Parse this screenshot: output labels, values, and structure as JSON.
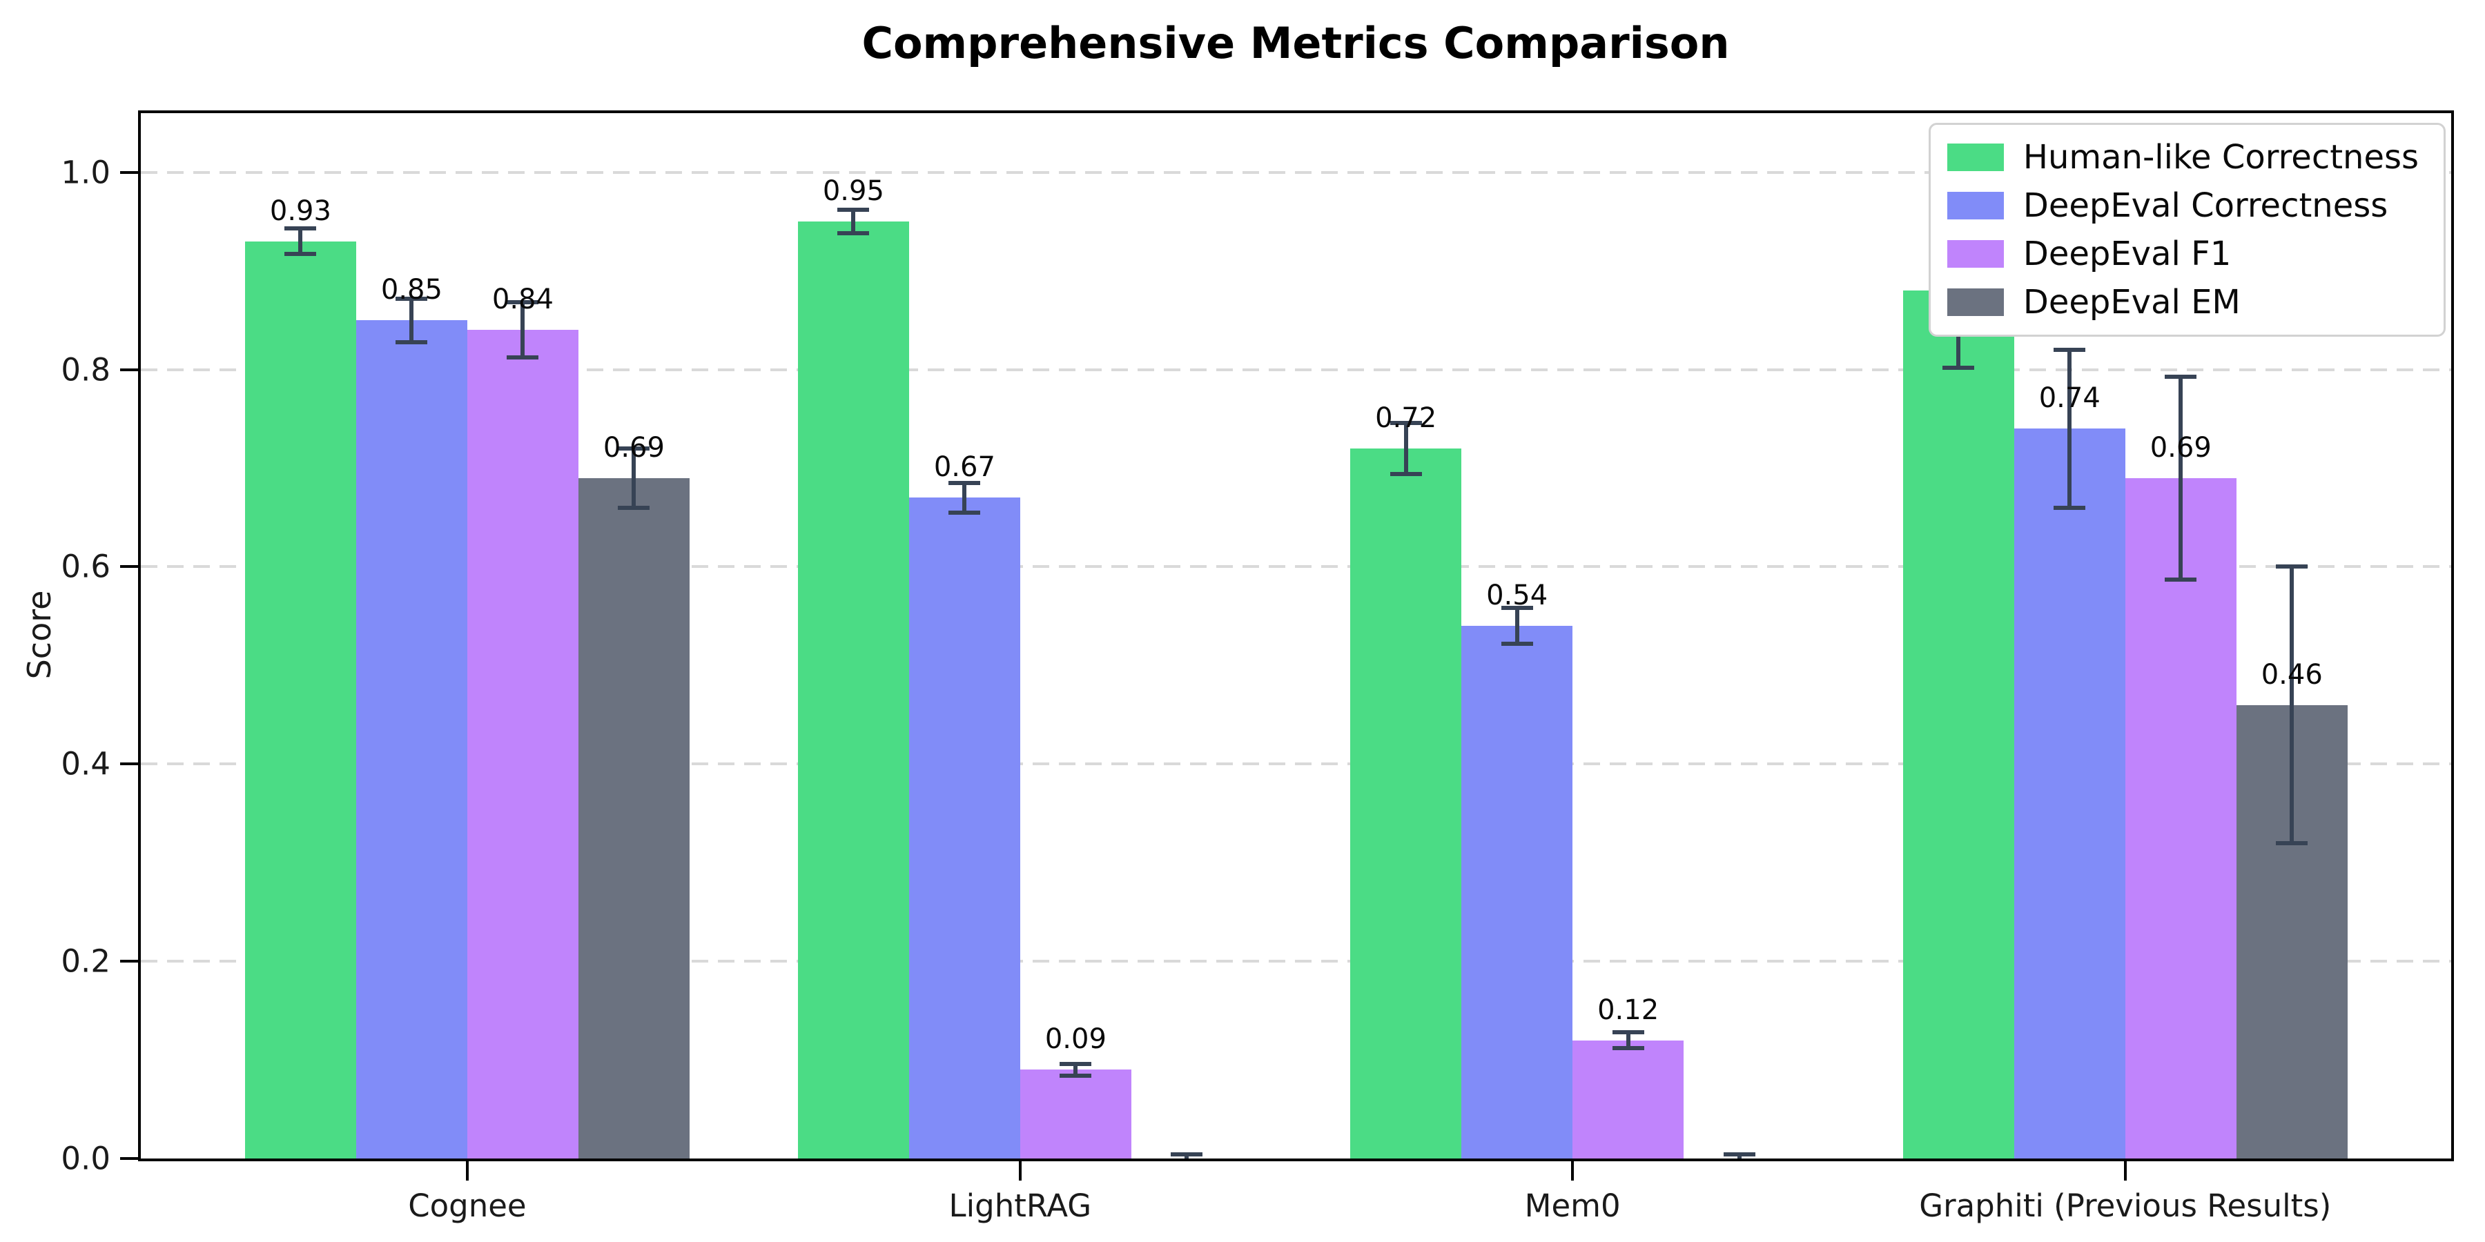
{
  "chart_data": {
    "type": "bar",
    "title": "Comprehensive Metrics Comparison",
    "ylabel": "Score",
    "xlabel": "",
    "categories": [
      "Cognee",
      "LightRAG",
      "Mem0",
      "Graphiti (Previous Results)"
    ],
    "series": [
      {
        "name": "Human-like Correctness",
        "color": "#4bdc85",
        "values": [
          0.93,
          0.95,
          0.72,
          0.88
        ],
        "errors": [
          0.013,
          0.012,
          0.026,
          0.078
        ],
        "labels": [
          "0.93",
          "0.95",
          "0.72",
          "0.88"
        ]
      },
      {
        "name": "DeepEval Correctness",
        "color": "#818cf8",
        "values": [
          0.85,
          0.67,
          0.54,
          0.74
        ],
        "errors": [
          0.022,
          0.015,
          0.018,
          0.08
        ],
        "labels": [
          "0.85",
          "0.67",
          "0.54",
          "0.74"
        ]
      },
      {
        "name": "DeepEval F1",
        "color": "#c084fc",
        "values": [
          0.84,
          0.09,
          0.12,
          0.69
        ],
        "errors": [
          0.028,
          0.006,
          0.008,
          0.103
        ],
        "labels": [
          "0.84",
          "0.09",
          "0.12",
          "0.69"
        ]
      },
      {
        "name": "DeepEval EM",
        "color": "#6b7280",
        "values": [
          0.69,
          0.0,
          0.0,
          0.46
        ],
        "errors": [
          0.03,
          0.004,
          0.004,
          0.14
        ],
        "labels": [
          "0.69",
          null,
          null,
          "0.46"
        ]
      }
    ],
    "yticks": [
      "0.0",
      "0.2",
      "0.4",
      "0.6",
      "0.8",
      "1.0"
    ],
    "ylim": [
      0,
      1.06
    ],
    "grid": "dashed-horizontal",
    "legend_position": "upper-right",
    "error_bar_color": "#374355"
  }
}
